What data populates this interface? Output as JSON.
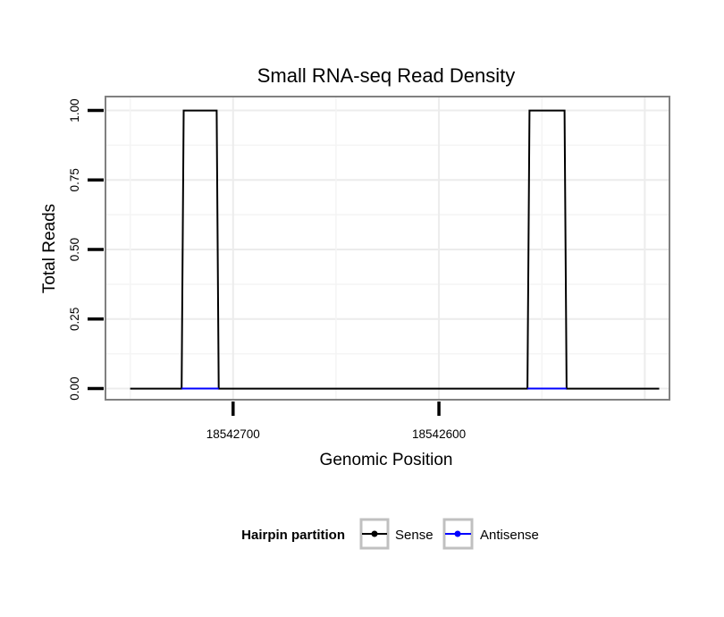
{
  "chart_data": {
    "type": "line",
    "title": "Small RNA-seq Read Density",
    "xlabel": "Genomic Position",
    "ylabel": "Total Reads",
    "x_reversed": true,
    "xlim": [
      18542762,
      18542488
    ],
    "ylim": [
      -0.04,
      1.05
    ],
    "y_ticks": [
      0,
      0.25,
      0.5,
      0.75,
      1
    ],
    "y_tick_labels": [
      "0.00",
      "0.25",
      "0.50",
      "0.75",
      "1.00"
    ],
    "x_ticks": [
      18542700,
      18542600
    ],
    "x_tick_labels": [
      "18542700",
      "18542600"
    ],
    "grid": true,
    "legend": {
      "title": "Hairpin partition",
      "position": "bottom",
      "entries": [
        {
          "name": "Sense",
          "color": "#000000"
        },
        {
          "name": "Antisense",
          "color": "#0000ff"
        }
      ]
    },
    "series": [
      {
        "name": "Sense",
        "color": "#000000",
        "x": [
          18542750,
          18542725,
          18542724,
          18542708,
          18542707,
          18542557,
          18542556,
          18542539,
          18542538,
          18542493
        ],
        "y": [
          0,
          0,
          1,
          1,
          0,
          0,
          1,
          1,
          0,
          0
        ]
      },
      {
        "name": "Antisense",
        "color": "#0000ff",
        "x": [
          18542725,
          18542707,
          18542557,
          18542538
        ],
        "y": [
          0,
          0,
          0,
          0
        ],
        "segments": [
          [
            0,
            1
          ],
          [
            2,
            3
          ]
        ]
      }
    ]
  }
}
